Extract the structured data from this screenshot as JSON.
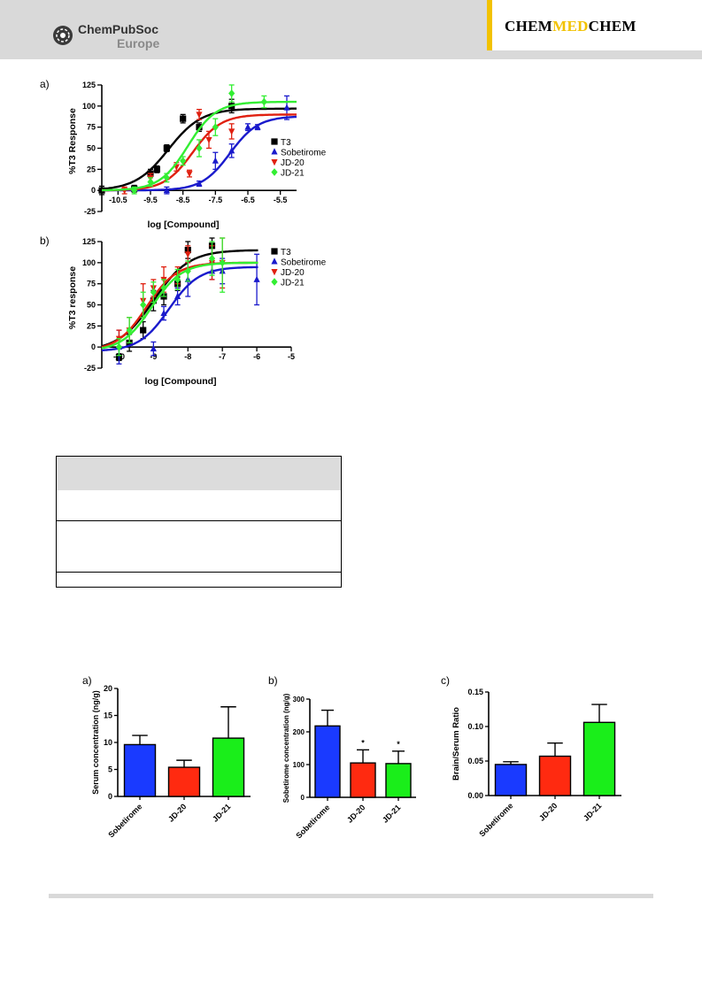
{
  "header": {
    "publisher_line1": "ChemPubSoc",
    "publisher_line2": "Europe",
    "journal_part1": "CHEM",
    "journal_part2": "MED",
    "journal_part3": "CHEM"
  },
  "colors": {
    "T3": "#000000",
    "Sobetirome": "#1a1acc",
    "JD-20": "#e02010",
    "JD-21": "#33ee33",
    "bar_sobetirome": "#1a3aff",
    "bar_jd20": "#ff2a10",
    "bar_jd21": "#1aee1a",
    "journal_accent": "#f2c200"
  },
  "chart_data": [
    {
      "panel": "a)",
      "type": "scatter",
      "xlabel": "log [Compound]",
      "ylabel": "%T3 Response",
      "xticks": [
        "-10.5",
        "-9.5",
        "-8.5",
        "-7.5",
        "-6.5",
        "-5.5"
      ],
      "yticks": [
        "-25",
        "0",
        "25",
        "50",
        "75",
        "100",
        "125"
      ],
      "xlim": [
        -11,
        -5
      ],
      "ylim": [
        -25,
        125
      ],
      "legend": [
        "T3",
        "Sobetirome",
        "JD-20",
        "JD-21"
      ],
      "legend_position": "right",
      "series": [
        {
          "name": "T3",
          "marker": "square",
          "x": [
            -11,
            -10,
            -9.5,
            -9.3,
            -9,
            -8.5,
            -8,
            -7
          ],
          "y": [
            0,
            2,
            20,
            25,
            50,
            85,
            75,
            100
          ],
          "err": [
            5,
            4,
            5,
            4,
            4,
            5,
            5,
            8
          ],
          "fit": {
            "bottom": 0,
            "top": 97,
            "logEC50": -8.95,
            "hill": 0.85
          }
        },
        {
          "name": "Sobetirome",
          "marker": "triangle-up",
          "x": [
            -9,
            -8,
            -7.5,
            -7,
            -6.5,
            -6.2,
            -5.3
          ],
          "y": [
            0,
            8,
            35,
            47,
            75,
            75,
            98
          ],
          "err": [
            4,
            3,
            10,
            8,
            4,
            3,
            14
          ],
          "fit": {
            "bottom": 0,
            "top": 88,
            "logEC50": -7.05,
            "hill": 1.0
          }
        },
        {
          "name": "JD-20",
          "marker": "triangle-down",
          "x": [
            -10.3,
            -9.5,
            -8.7,
            -8.3,
            -8,
            -7.7,
            -7
          ],
          "y": [
            0,
            15,
            28,
            20,
            90,
            60,
            70
          ],
          "err": [
            4,
            5,
            5,
            4,
            6,
            10,
            9
          ],
          "fit": {
            "bottom": 0,
            "top": 90,
            "logEC50": -8.2,
            "hill": 1.0
          }
        },
        {
          "name": "JD-21",
          "marker": "diamond",
          "x": [
            -10,
            -9.5,
            -9,
            -8.5,
            -8,
            -7.5,
            -7,
            -6
          ],
          "y": [
            0,
            10,
            15,
            35,
            50,
            75,
            115,
            105
          ],
          "err": [
            4,
            5,
            5,
            5,
            10,
            10,
            10,
            7
          ],
          "fit": {
            "bottom": 0,
            "top": 105,
            "logEC50": -8.35,
            "hill": 1.0
          }
        }
      ]
    },
    {
      "panel": "b)",
      "type": "scatter",
      "xlabel": "log [Compound]",
      "ylabel": "%T3 response",
      "xticks": [
        "-10",
        "-9",
        "-8",
        "-7",
        "-6",
        "-5"
      ],
      "yticks": [
        "-25",
        "0",
        "25",
        "50",
        "75",
        "100",
        "125"
      ],
      "xlim": [
        -10.5,
        -5
      ],
      "ylim": [
        -25,
        125
      ],
      "legend": [
        "T3",
        "Sobetirome",
        "JD-20",
        "JD-21"
      ],
      "legend_position": "right",
      "series": [
        {
          "name": "T3",
          "marker": "square",
          "x": [
            -10,
            -9.7,
            -9.3,
            -9,
            -8.7,
            -8.3,
            -8,
            -7.3
          ],
          "y": [
            -12,
            5,
            20,
            55,
            60,
            75,
            115,
            120
          ],
          "err": [
            4,
            10,
            10,
            12,
            10,
            8,
            10,
            20
          ],
          "fit": {
            "bottom": -5,
            "top": 115,
            "logEC50": -9.0,
            "hill": 0.85
          }
        },
        {
          "name": "Sobetirome",
          "marker": "triangle-up",
          "x": [
            -10,
            -9,
            -8.7,
            -8.3,
            -8,
            -7.3,
            -7,
            -6
          ],
          "y": [
            0,
            -2,
            40,
            60,
            80,
            90,
            90,
            80
          ],
          "err": [
            20,
            8,
            8,
            10,
            20,
            10,
            15,
            30
          ],
          "fit": {
            "bottom": -5,
            "top": 95,
            "logEC50": -8.55,
            "hill": 1.0
          }
        },
        {
          "name": "JD-20",
          "marker": "triangle-down",
          "x": [
            -10,
            -9.7,
            -9.3,
            -9,
            -8.7,
            -8.3,
            -8,
            -7.3,
            -7
          ],
          "y": [
            10,
            20,
            55,
            70,
            80,
            85,
            110,
            100,
            100
          ],
          "err": [
            10,
            15,
            20,
            10,
            15,
            10,
            10,
            20,
            30
          ],
          "fit": {
            "bottom": -5,
            "top": 100,
            "logEC50": -9.2,
            "hill": 1.0
          }
        },
        {
          "name": "JD-21",
          "marker": "diamond",
          "x": [
            -10,
            -9.7,
            -9.3,
            -9,
            -8.7,
            -8.3,
            -8,
            -7.3,
            -7
          ],
          "y": [
            0,
            20,
            50,
            65,
            70,
            80,
            90,
            105,
            100
          ],
          "err": [
            10,
            15,
            15,
            12,
            10,
            12,
            12,
            20,
            35
          ],
          "fit": {
            "bottom": -5,
            "top": 100,
            "logEC50": -9.05,
            "hill": 1.0
          }
        }
      ]
    },
    {
      "panel": "a)",
      "type": "bar",
      "ylabel": "Serum concentration (ng/g)",
      "categories": [
        "Sobetirome",
        "JD-20",
        "JD-21"
      ],
      "values": [
        9.6,
        5.4,
        10.8
      ],
      "err": [
        1.7,
        1.3,
        5.8
      ],
      "ylim": [
        0,
        20
      ],
      "yticks": [
        "0",
        "5",
        "10",
        "15",
        "20"
      ],
      "star": [
        "",
        "",
        ""
      ]
    },
    {
      "panel": "b)",
      "type": "bar",
      "ylabel": "Sobetirome concentration (ng/g)",
      "categories": [
        "Sobetirome",
        "JD-20",
        "JD-21"
      ],
      "values": [
        218,
        105,
        103
      ],
      "err": [
        48,
        40,
        38
      ],
      "ylim": [
        0,
        300
      ],
      "yticks": [
        "0",
        "100",
        "200",
        "300"
      ],
      "star": [
        "",
        "*",
        "*"
      ]
    },
    {
      "panel": "c)",
      "type": "bar",
      "ylabel": "Brain/Serum Ratio",
      "categories": [
        "Sobetirome",
        "JD-20",
        "JD-21"
      ],
      "values": [
        0.045,
        0.057,
        0.106
      ],
      "err": [
        0.004,
        0.019,
        0.026
      ],
      "ylim": [
        0,
        0.15
      ],
      "yticks": [
        "0.00",
        "0.05",
        "0.10",
        "0.15"
      ],
      "star": [
        "",
        "",
        ""
      ]
    }
  ]
}
